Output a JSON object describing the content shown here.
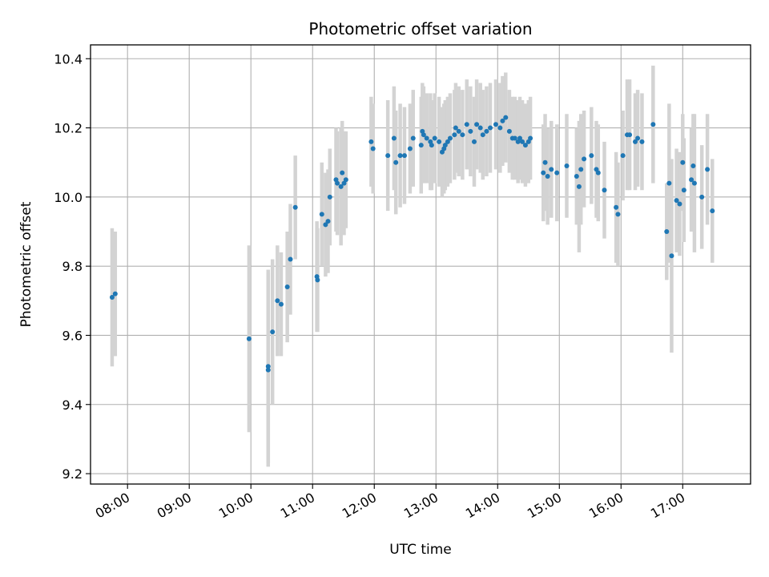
{
  "chart_data": {
    "type": "scatter",
    "title": "Photometric offset variation",
    "xlabel": "UTC time",
    "ylabel": "Photometric offset",
    "x_unit": "hours UTC",
    "xlim": [
      7.4,
      18.1
    ],
    "ylim": [
      9.17,
      10.44
    ],
    "x_ticks": [
      8,
      9,
      10,
      11,
      12,
      13,
      14,
      15,
      16,
      17
    ],
    "x_tick_labels": [
      "08:00",
      "09:00",
      "10:00",
      "11:00",
      "12:00",
      "13:00",
      "14:00",
      "15:00",
      "16:00",
      "17:00"
    ],
    "y_ticks": [
      9.2,
      9.4,
      9.6,
      9.8,
      10.0,
      10.2,
      10.4
    ],
    "y_tick_labels": [
      "9.2",
      "9.4",
      "9.6",
      "9.8",
      "10.0",
      "10.2",
      "10.4"
    ],
    "grid": true,
    "colors": {
      "point": "#1f77b4",
      "errorbar": "#d3d3d3",
      "grid": "#b0b0b0"
    },
    "points": [
      [
        7.75,
        9.71,
        0.2
      ],
      [
        7.8,
        9.72,
        0.18
      ],
      [
        9.97,
        9.59,
        0.27
      ],
      [
        10.28,
        9.51,
        0.28
      ],
      [
        10.28,
        9.5,
        0.28
      ],
      [
        10.35,
        9.61,
        0.21
      ],
      [
        10.43,
        9.7,
        0.16
      ],
      [
        10.49,
        9.69,
        0.15
      ],
      [
        10.59,
        9.74,
        0.16
      ],
      [
        10.64,
        9.82,
        0.16
      ],
      [
        10.72,
        9.97,
        0.15
      ],
      [
        11.07,
        9.77,
        0.16
      ],
      [
        11.08,
        9.76,
        0.15
      ],
      [
        11.15,
        9.95,
        0.15
      ],
      [
        11.21,
        9.92,
        0.15
      ],
      [
        11.25,
        9.93,
        0.15
      ],
      [
        11.28,
        10.0,
        0.14
      ],
      [
        11.38,
        10.05,
        0.15
      ],
      [
        11.4,
        10.04,
        0.15
      ],
      [
        11.46,
        10.03,
        0.17
      ],
      [
        11.48,
        10.07,
        0.15
      ],
      [
        11.51,
        10.04,
        0.15
      ],
      [
        11.54,
        10.05,
        0.14
      ],
      [
        11.95,
        10.16,
        0.13
      ],
      [
        11.98,
        10.14,
        0.13
      ],
      [
        12.22,
        10.12,
        0.16
      ],
      [
        12.32,
        10.17,
        0.15
      ],
      [
        12.35,
        10.1,
        0.15
      ],
      [
        12.42,
        10.12,
        0.15
      ],
      [
        12.49,
        10.12,
        0.14
      ],
      [
        12.58,
        10.14,
        0.13
      ],
      [
        12.63,
        10.17,
        0.14
      ],
      [
        12.76,
        10.15,
        0.14
      ],
      [
        12.78,
        10.19,
        0.14
      ],
      [
        12.8,
        10.18,
        0.14
      ],
      [
        12.85,
        10.17,
        0.13
      ],
      [
        12.91,
        10.16,
        0.14
      ],
      [
        12.93,
        10.15,
        0.13
      ],
      [
        12.98,
        10.17,
        0.13
      ],
      [
        13.05,
        10.16,
        0.13
      ],
      [
        13.1,
        10.13,
        0.13
      ],
      [
        13.13,
        10.14,
        0.13
      ],
      [
        13.15,
        10.15,
        0.13
      ],
      [
        13.19,
        10.16,
        0.13
      ],
      [
        13.23,
        10.17,
        0.13
      ],
      [
        13.3,
        10.18,
        0.13
      ],
      [
        13.32,
        10.2,
        0.13
      ],
      [
        13.37,
        10.19,
        0.13
      ],
      [
        13.43,
        10.18,
        0.13
      ],
      [
        13.5,
        10.21,
        0.13
      ],
      [
        13.56,
        10.19,
        0.13
      ],
      [
        13.62,
        10.16,
        0.13
      ],
      [
        13.66,
        10.21,
        0.13
      ],
      [
        13.72,
        10.2,
        0.13
      ],
      [
        13.76,
        10.18,
        0.13
      ],
      [
        13.82,
        10.19,
        0.13
      ],
      [
        13.88,
        10.2,
        0.13
      ],
      [
        13.97,
        10.21,
        0.13
      ],
      [
        14.04,
        10.2,
        0.13
      ],
      [
        14.08,
        10.22,
        0.13
      ],
      [
        14.13,
        10.23,
        0.13
      ],
      [
        14.19,
        10.19,
        0.12
      ],
      [
        14.24,
        10.17,
        0.12
      ],
      [
        14.28,
        10.17,
        0.12
      ],
      [
        14.33,
        10.16,
        0.12
      ],
      [
        14.36,
        10.17,
        0.12
      ],
      [
        14.4,
        10.16,
        0.12
      ],
      [
        14.45,
        10.15,
        0.12
      ],
      [
        14.5,
        10.16,
        0.12
      ],
      [
        14.53,
        10.17,
        0.12
      ],
      [
        14.74,
        10.07,
        0.14
      ],
      [
        14.77,
        10.1,
        0.14
      ],
      [
        14.81,
        10.06,
        0.14
      ],
      [
        14.87,
        10.08,
        0.14
      ],
      [
        14.96,
        10.07,
        0.14
      ],
      [
        15.12,
        10.09,
        0.15
      ],
      [
        15.28,
        10.06,
        0.14
      ],
      [
        15.32,
        10.03,
        0.19
      ],
      [
        15.35,
        10.08,
        0.16
      ],
      [
        15.4,
        10.11,
        0.14
      ],
      [
        15.52,
        10.12,
        0.14
      ],
      [
        15.6,
        10.08,
        0.14
      ],
      [
        15.63,
        10.07,
        0.14
      ],
      [
        15.73,
        10.02,
        0.14
      ],
      [
        15.92,
        9.97,
        0.16
      ],
      [
        15.95,
        9.95,
        0.15
      ],
      [
        16.03,
        10.12,
        0.13
      ],
      [
        16.1,
        10.18,
        0.16
      ],
      [
        16.14,
        10.18,
        0.16
      ],
      [
        16.23,
        10.16,
        0.14
      ],
      [
        16.27,
        10.17,
        0.14
      ],
      [
        16.34,
        10.16,
        0.14
      ],
      [
        16.52,
        10.21,
        0.17
      ],
      [
        16.74,
        9.9,
        0.14
      ],
      [
        16.78,
        10.04,
        0.23
      ],
      [
        16.82,
        9.83,
        0.28
      ],
      [
        16.9,
        9.99,
        0.15
      ],
      [
        16.95,
        9.98,
        0.15
      ],
      [
        17.0,
        10.1,
        0.14
      ],
      [
        17.02,
        10.02,
        0.15
      ],
      [
        17.14,
        10.05,
        0.15
      ],
      [
        17.17,
        10.09,
        0.15
      ],
      [
        17.19,
        10.04,
        0.2
      ],
      [
        17.31,
        10.0,
        0.15
      ],
      [
        17.4,
        10.08,
        0.16
      ],
      [
        17.48,
        9.96,
        0.15
      ]
    ]
  }
}
